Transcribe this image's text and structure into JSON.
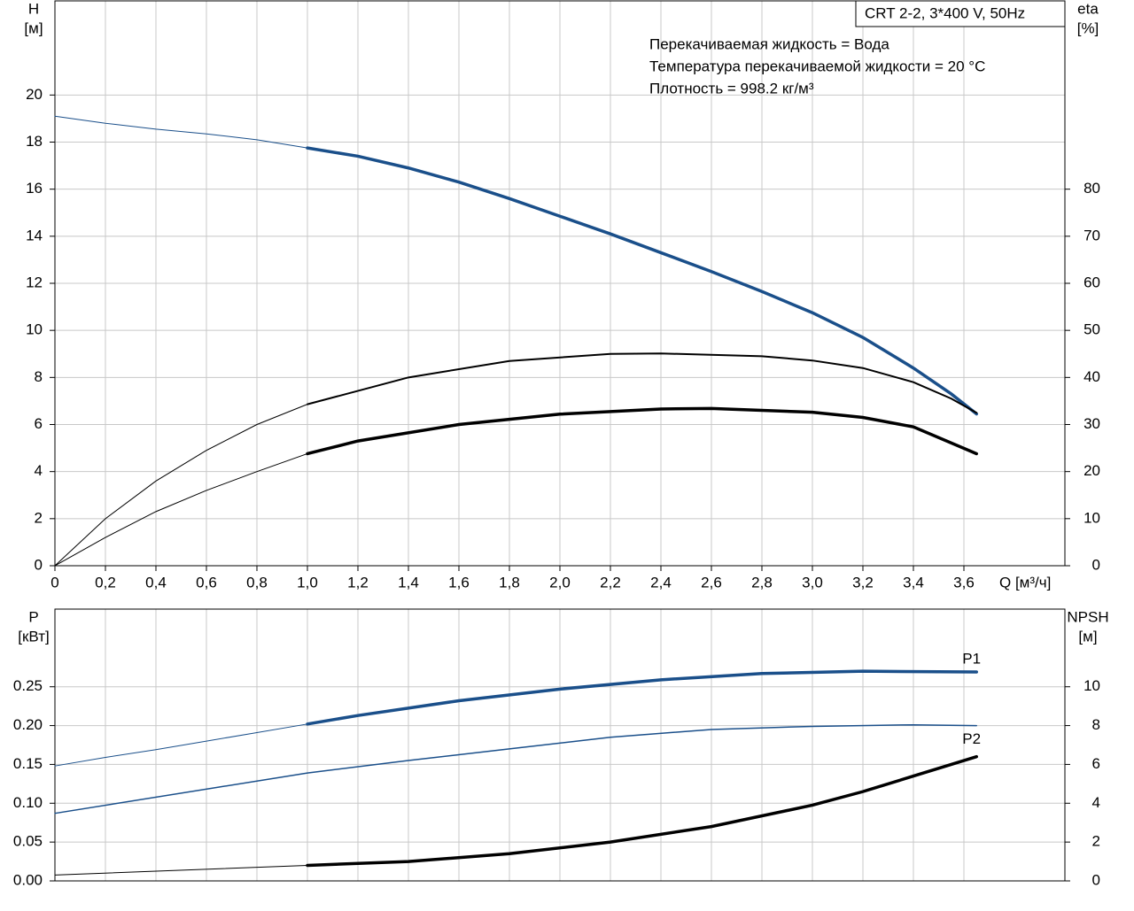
{
  "chart_data": [
    {
      "type": "line",
      "legend_box": "CRT 2-2, 3*400 V, 50Hz",
      "annotations": [
        "Перекачиваемая жидкость = Вода",
        "Температура перекачиваемой жидкости = 20 °C",
        "Плотность = 998.2 кг/м³"
      ],
      "ylabel": [
        "H",
        "[м]"
      ],
      "y2label": [
        "eta",
        "[%]"
      ],
      "xlabel": "Q [м³/ч]",
      "xlim": [
        0,
        4.0
      ],
      "ylim": [
        0,
        24
      ],
      "y2lim": [
        0,
        120
      ],
      "grid": true,
      "xticks": [
        0,
        {
          "value": 0.2,
          "label": "0,2"
        },
        {
          "value": 0.4,
          "label": "0,4"
        },
        {
          "value": 0.6,
          "label": "0,6"
        },
        {
          "value": 0.8,
          "label": "0,8"
        },
        {
          "value": 1.0,
          "label": "1,0"
        },
        {
          "value": 1.2,
          "label": "1,2"
        },
        {
          "value": 1.4,
          "label": "1,4"
        },
        {
          "value": 1.6,
          "label": "1,6"
        },
        {
          "value": 1.8,
          "label": "1,8"
        },
        {
          "value": 2.0,
          "label": "2,0"
        },
        {
          "value": 2.2,
          "label": "2,2"
        },
        {
          "value": 2.4,
          "label": "2,4"
        },
        {
          "value": 2.6,
          "label": "2,6"
        },
        {
          "value": 2.8,
          "label": "2,8"
        },
        {
          "value": 3.0,
          "label": "3,0"
        },
        {
          "value": 3.2,
          "label": "3,2"
        },
        {
          "value": 3.4,
          "label": "3,4"
        },
        {
          "value": 3.6,
          "label": "3,6"
        }
      ],
      "yticks": [
        0,
        2,
        4,
        6,
        8,
        10,
        12,
        14,
        16,
        18,
        20
      ],
      "y2ticks": [
        0,
        10,
        20,
        30,
        40,
        50,
        60,
        70,
        80
      ],
      "series": [
        {
          "color": "#1a4f8a",
          "width": 1,
          "x": [
            0,
            0.2,
            0.4,
            0.6,
            0.8,
            1.0
          ],
          "values": [
            19.1,
            18.8,
            18.55,
            18.35,
            18.1,
            17.75
          ]
        },
        {
          "color": "#1a4f8a",
          "width": 3.5,
          "x": [
            1.0,
            1.2,
            1.4,
            1.6,
            1.8,
            2.0,
            2.2,
            2.4,
            2.6,
            2.8,
            3.0,
            3.2,
            3.4,
            3.55,
            3.65
          ],
          "values": [
            17.75,
            17.4,
            16.9,
            16.3,
            15.6,
            14.85,
            14.1,
            13.3,
            12.5,
            11.65,
            10.75,
            9.7,
            8.4,
            7.3,
            6.45
          ]
        },
        {
          "color": "#000000",
          "width": 1,
          "axis": "y2",
          "x": [
            0,
            0.2,
            0.4,
            0.6,
            0.8,
            1.0
          ],
          "values": [
            0,
            10,
            18,
            24.5,
            30,
            34.3
          ]
        },
        {
          "color": "#000000",
          "width": 2,
          "axis": "y2",
          "x": [
            1.0,
            1.4,
            1.8,
            2.2,
            2.4,
            2.8,
            3.0,
            3.2,
            3.4,
            3.55,
            3.65
          ],
          "values": [
            34.3,
            40,
            43.5,
            45,
            45.1,
            44.5,
            43.6,
            42,
            39,
            35.5,
            32.5
          ]
        },
        {
          "color": "#000000",
          "width": 1,
          "axis": "y2",
          "x": [
            0,
            0.2,
            0.4,
            0.6,
            0.8,
            1.0
          ],
          "values": [
            0,
            6,
            11.5,
            16,
            20,
            23.8
          ]
        },
        {
          "color": "#000000",
          "width": 3.5,
          "axis": "y2",
          "x": [
            1.0,
            1.2,
            1.6,
            2.0,
            2.4,
            2.6,
            3.0,
            3.2,
            3.4,
            3.65
          ],
          "values": [
            23.8,
            26.5,
            30,
            32.2,
            33.3,
            33.4,
            32.6,
            31.5,
            29.5,
            23.8
          ]
        }
      ]
    },
    {
      "type": "line",
      "ylabel": [
        "P",
        "[кВт]"
      ],
      "y2label": [
        "NPSH",
        "[м]"
      ],
      "xlim": [
        0,
        4.0
      ],
      "ylim": [
        0,
        0.35
      ],
      "y2lim": [
        0,
        14
      ],
      "grid": true,
      "yticks": [
        {
          "value": 0,
          "label": "0.00"
        },
        {
          "value": 0.05,
          "label": "0.05"
        },
        {
          "value": 0.1,
          "label": "0.10"
        },
        {
          "value": 0.15,
          "label": "0.15"
        },
        {
          "value": 0.2,
          "label": "0.20"
        },
        {
          "value": 0.25,
          "label": "0.25"
        }
      ],
      "y2ticks": [
        0,
        2,
        4,
        6,
        8,
        10
      ],
      "series": [
        {
          "color": "#1a4f8a",
          "width": 1,
          "x": [
            0,
            0.2,
            0.4,
            0.6,
            0.8,
            1.0
          ],
          "values": [
            0.148,
            0.159,
            0.169,
            0.18,
            0.191,
            0.202
          ]
        },
        {
          "name": "P1",
          "color": "#1a4f8a",
          "width": 3.5,
          "x": [
            1.0,
            1.2,
            1.6,
            2.0,
            2.4,
            2.8,
            3.2,
            3.65
          ],
          "values": [
            0.202,
            0.213,
            0.232,
            0.247,
            0.259,
            0.267,
            0.27,
            0.269
          ]
        },
        {
          "name": "P2",
          "color": "#1a4f8a",
          "width": 1.5,
          "x": [
            0,
            1.0,
            1.4,
            1.8,
            2.2,
            2.6,
            3.0,
            3.4,
            3.65
          ],
          "values": [
            0.087,
            0.139,
            0.155,
            0.17,
            0.185,
            0.195,
            0.199,
            0.201,
            0.2
          ]
        },
        {
          "color": "#000000",
          "width": 1,
          "axis": "y2",
          "x": [
            0,
            1.0
          ],
          "values": [
            0.3,
            0.8
          ]
        },
        {
          "color": "#000000",
          "width": 3.5,
          "axis": "y2",
          "x": [
            1.0,
            1.4,
            1.8,
            2.2,
            2.6,
            3.0,
            3.2,
            3.4,
            3.65
          ],
          "values": [
            0.8,
            1.0,
            1.4,
            2.0,
            2.8,
            3.9,
            4.6,
            5.4,
            6.4
          ]
        }
      ]
    }
  ]
}
